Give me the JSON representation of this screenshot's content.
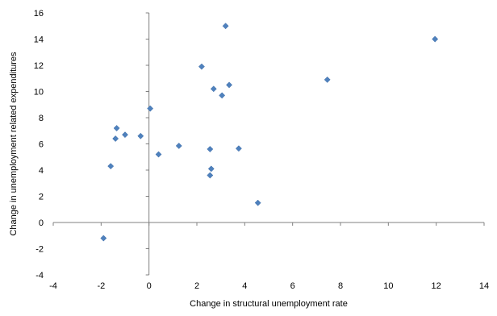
{
  "chart_data": {
    "type": "scatter",
    "title": "",
    "xlabel": "Change in structural unemployment rate",
    "ylabel": "Change in unemployment related expenditures",
    "xlim": [
      -4,
      14
    ],
    "ylim": [
      -4,
      16
    ],
    "x_ticks": [
      -4,
      -2,
      0,
      2,
      4,
      6,
      8,
      10,
      12,
      14
    ],
    "y_ticks": [
      -4,
      -2,
      0,
      2,
      4,
      6,
      8,
      10,
      12,
      14,
      16
    ],
    "x_tick_labels": [
      "-4",
      "-2",
      "0",
      "2",
      "4",
      "6",
      "8",
      "10",
      "12",
      "14"
    ],
    "y_tick_labels": [
      "-4",
      "-2",
      "0",
      "2",
      "4",
      "6",
      "8",
      "10",
      "12",
      "14",
      "16"
    ],
    "grid": false,
    "legend": "none",
    "marker": "diamond",
    "marker_color": "#4f81bd",
    "series": [
      {
        "points": [
          [
            -1.9,
            -1.2
          ],
          [
            -1.6,
            4.3
          ],
          [
            -1.4,
            6.4
          ],
          [
            -1.35,
            7.2
          ],
          [
            -1.0,
            6.7
          ],
          [
            -0.35,
            6.6
          ],
          [
            0.05,
            8.7
          ],
          [
            0.4,
            5.2
          ],
          [
            1.25,
            5.85
          ],
          [
            2.2,
            11.9
          ],
          [
            2.55,
            5.6
          ],
          [
            2.55,
            3.6
          ],
          [
            2.6,
            4.1
          ],
          [
            2.7,
            10.2
          ],
          [
            3.05,
            9.7
          ],
          [
            3.2,
            15.0
          ],
          [
            3.35,
            10.5
          ],
          [
            3.75,
            5.65
          ],
          [
            4.55,
            1.5
          ],
          [
            7.45,
            10.9
          ],
          [
            11.95,
            14.0
          ]
        ]
      }
    ]
  }
}
